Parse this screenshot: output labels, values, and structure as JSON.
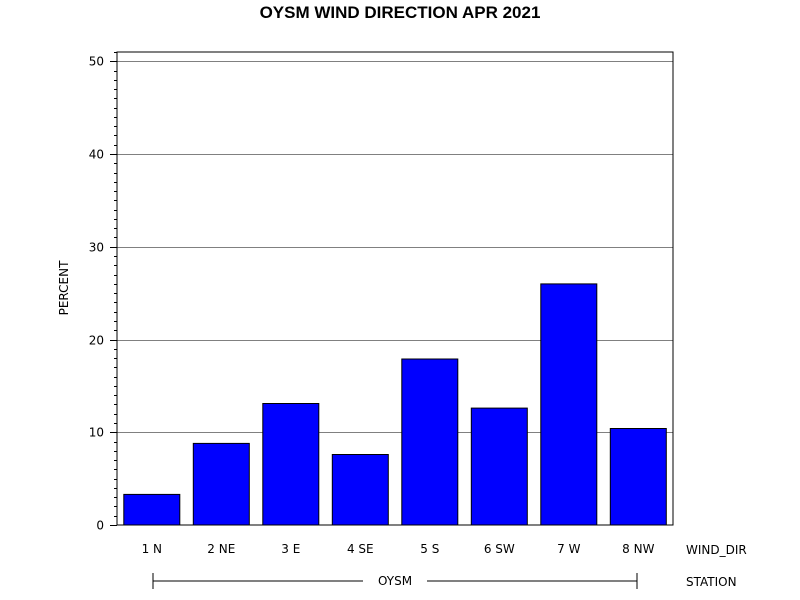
{
  "chart_data": {
    "type": "bar",
    "title": "OYSM WIND DIRECTION APR 2021",
    "ylabel": "PERCENT",
    "xlabel": "WIND_DIR",
    "group_label": "STATION",
    "group_value": "OYSM",
    "categories": [
      "1 N",
      "2 NE",
      "3 E",
      "4 SE",
      "5 S",
      "6 SW",
      "7 W",
      "8 NW"
    ],
    "values": [
      3.3,
      8.8,
      13.1,
      7.6,
      17.9,
      12.6,
      26.0,
      10.4
    ],
    "ylim": [
      0,
      51
    ],
    "yticks": [
      0,
      10,
      20,
      30,
      40,
      50
    ],
    "grid": true,
    "bar_color": "#0000ff",
    "grid_color": "#808080"
  }
}
